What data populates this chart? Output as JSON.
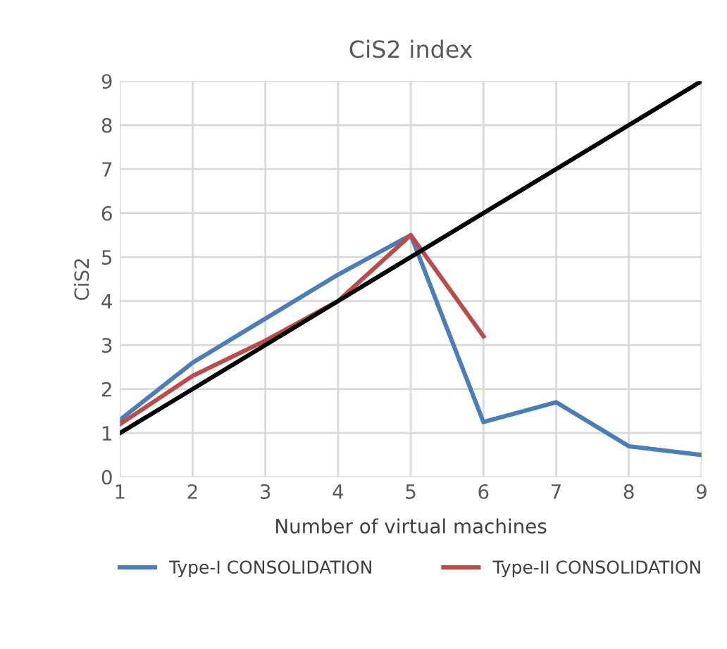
{
  "chart_data": {
    "type": "line",
    "title": "CiS2 index",
    "xlabel": "Number of virtual machines",
    "ylabel": "CiS2",
    "series": [
      {
        "name": "Type-I CONSOLIDATION",
        "color": "#4a7ebb",
        "x": [
          1,
          2,
          3,
          4,
          5,
          6,
          7,
          8,
          9
        ],
        "values": [
          1.3,
          2.6,
          3.6,
          4.6,
          5.5,
          1.25,
          1.7,
          0.7,
          0.5
        ]
      },
      {
        "name": "Type-II CONSOLIDATION",
        "color": "#be4b48",
        "x": [
          1,
          2,
          3,
          4,
          5,
          6
        ],
        "values": [
          1.2,
          2.3,
          3.1,
          4.0,
          5.5,
          3.2
        ]
      },
      {
        "color": "#000000",
        "x": [
          1,
          9
        ],
        "values": [
          1,
          9
        ]
      }
    ],
    "xlim": [
      1,
      9
    ],
    "xticks": [
      1,
      2,
      3,
      4,
      5,
      6,
      7,
      8,
      9
    ],
    "ylim": [
      0,
      9
    ],
    "yticks": [
      0,
      1,
      2,
      3,
      4,
      5,
      6,
      7,
      8,
      9
    ],
    "grid": true,
    "legend": "bottom",
    "marker": "none",
    "line_style": "solid"
  }
}
